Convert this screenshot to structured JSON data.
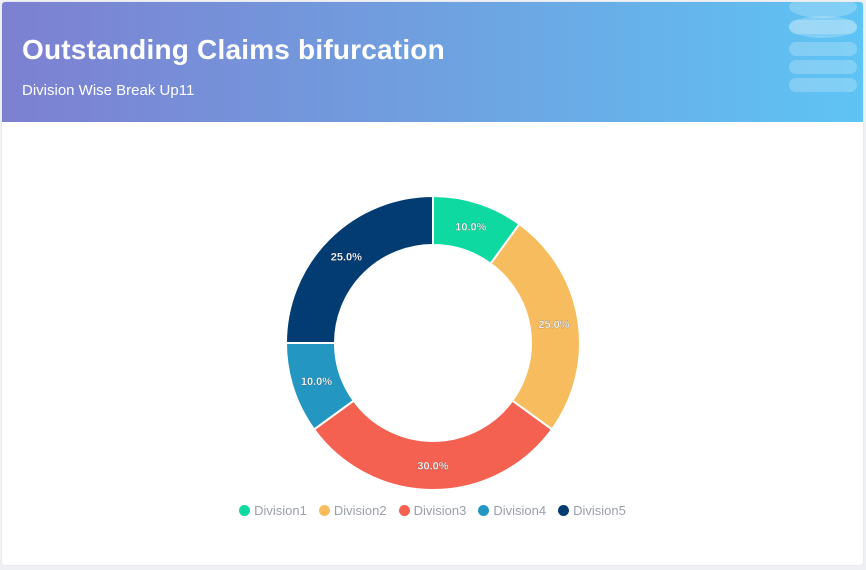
{
  "header": {
    "title": "Outstanding Claims bifurcation",
    "subtitle": "Division Wise Break Up11"
  },
  "chart_data": {
    "type": "pie",
    "donut": true,
    "categories": [
      "Division1",
      "Division2",
      "Division3",
      "Division4",
      "Division5"
    ],
    "values": [
      10.0,
      25.0,
      30.0,
      10.0,
      25.0
    ],
    "data_labels": [
      "10.0%",
      "25.0%",
      "30.0%",
      "10.0%",
      "25.0%"
    ],
    "colors": [
      "#0ed9a0",
      "#f6bc5e",
      "#f56150",
      "#2496c2",
      "#033c72"
    ],
    "legend_position": "bottom"
  }
}
